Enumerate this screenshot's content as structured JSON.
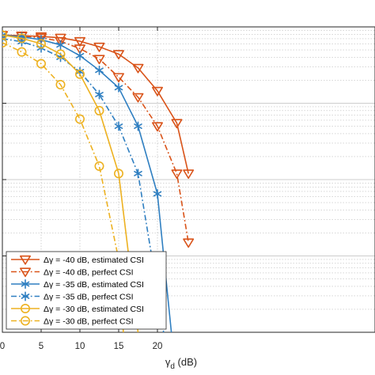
{
  "chart_data": {
    "type": "line",
    "title": "",
    "xlabel": "γ",
    "xlabel_sub": "d",
    "xlabel_unit": " (dB)",
    "ylabel": "",
    "x_ticks": [
      0,
      5,
      10,
      15,
      20
    ],
    "xlim": [
      0,
      24
    ],
    "y_scale": "log",
    "ylim": [
      0.0001,
      1.0
    ],
    "grid": true,
    "legend_position": "bottom-left",
    "series": [
      {
        "name": "Δγ = -40 dB, estimated CSI",
        "color": "#d95319",
        "marker": "triangle-down",
        "line": "solid",
        "x": [
          0,
          2.5,
          5,
          7.5,
          10,
          12.5,
          15,
          17.5,
          20,
          22.5,
          24
        ],
        "y": [
          0.78,
          0.77,
          0.75,
          0.72,
          0.65,
          0.55,
          0.44,
          0.29,
          0.145,
          0.055,
          0.012
        ]
      },
      {
        "name": "Δγ = -40 dB, perfect CSI",
        "color": "#d95319",
        "marker": "triangle-down",
        "line": "dashdot",
        "x": [
          0,
          2.5,
          5,
          7.5,
          10,
          12.5,
          15,
          17.5,
          20,
          22.5,
          24
        ],
        "y": [
          0.78,
          0.76,
          0.72,
          0.65,
          0.52,
          0.38,
          0.22,
          0.12,
          0.05,
          0.012,
          0.0015
        ]
      },
      {
        "name": "Δγ = -35 dB, estimated CSI",
        "color": "#2f7fc1",
        "marker": "asterisk",
        "line": "solid",
        "x": [
          0,
          2.5,
          5,
          7.5,
          10,
          12.5,
          15,
          17.5,
          20,
          21.8
        ],
        "y": [
          0.78,
          0.74,
          0.68,
          0.58,
          0.42,
          0.27,
          0.16,
          0.05,
          0.0065,
          0.0001
        ]
      },
      {
        "name": "Δγ = -35 dB, perfect CSI",
        "color": "#2f7fc1",
        "marker": "asterisk",
        "line": "dashdot",
        "x": [
          0,
          2.5,
          5,
          7.5,
          10,
          12.5,
          15,
          17.5,
          20,
          20.8
        ],
        "y": [
          0.7,
          0.64,
          0.53,
          0.4,
          0.26,
          0.13,
          0.05,
          0.012,
          0.00035,
          0.0001
        ]
      },
      {
        "name": "Δγ = -30 dB, estimated CSI",
        "color": "#edb120",
        "marker": "circle",
        "line": "solid",
        "x": [
          0,
          2.5,
          5,
          7.5,
          10,
          12.5,
          15,
          17.5
        ],
        "y": [
          0.78,
          0.71,
          0.6,
          0.44,
          0.24,
          0.08,
          0.012,
          0.0001
        ]
      },
      {
        "name": "Δγ = -30 dB, perfect CSI",
        "color": "#edb120",
        "marker": "circle",
        "line": "dashdot",
        "x": [
          0,
          2.5,
          5,
          7.5,
          10,
          12.5,
          15,
          15.6
        ],
        "y": [
          0.62,
          0.47,
          0.33,
          0.175,
          0.062,
          0.015,
          0.0009,
          0.0001
        ]
      }
    ]
  }
}
